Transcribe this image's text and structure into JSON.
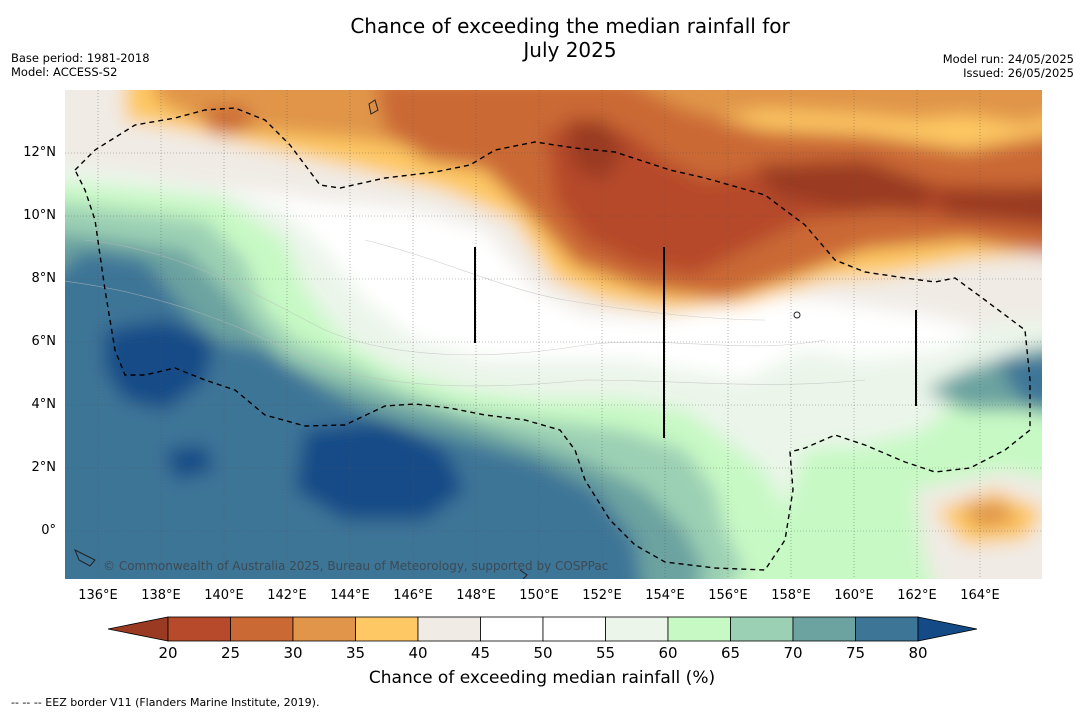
{
  "header": {
    "title_line1": "Chance of exceeding the median rainfall for",
    "title_line2": "July 2025",
    "base_period": "Base period: 1981-2018",
    "model": "Model: ACCESS-S2",
    "model_run": "Model run: 24/05/2025",
    "issued": "Issued: 26/05/2025"
  },
  "map": {
    "longitude_labels": [
      "136°E",
      "138°E",
      "140°E",
      "142°E",
      "144°E",
      "146°E",
      "148°E",
      "150°E",
      "152°E",
      "154°E",
      "156°E",
      "158°E",
      "160°E",
      "162°E",
      "164°E"
    ],
    "latitude_labels": [
      "12°N",
      "10°N",
      "8°N",
      "6°N",
      "4°N",
      "2°N",
      "0°"
    ],
    "copyright": "© Commonwealth of Australia 2025, Bureau of Meteorology, supported by COSPPac",
    "grid": true,
    "eez_border": "dashed"
  },
  "colorbar": {
    "ticks": [
      "20",
      "25",
      "30",
      "35",
      "40",
      "45",
      "50",
      "55",
      "60",
      "65",
      "70",
      "75",
      "80"
    ],
    "label": "Chance of exceeding median rainfall (%)",
    "colors": [
      "#9a3a22",
      "#b64a2a",
      "#cb6935",
      "#e0954a",
      "#fec864",
      "#f0ebe5",
      "#ffffff",
      "#ffffff",
      "#ebf5ea",
      "#c7f9c5",
      "#9cd0b4",
      "#6ca3a0",
      "#3d7597",
      "#144b87"
    ]
  },
  "footnote": "--  --  -- EEZ border V11 (Flanders Marine Institute, 2019)."
}
